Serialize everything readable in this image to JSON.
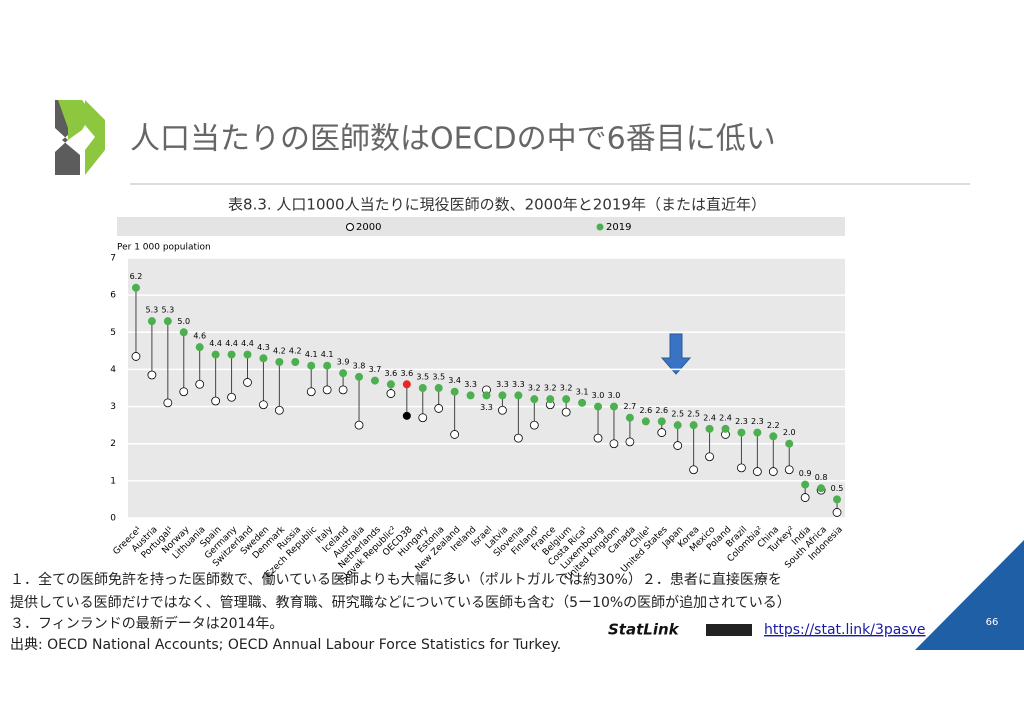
{
  "slide_title": "人口当たりの医師数はOECDの中で6番目に低い",
  "chart_data": {
    "type": "dot",
    "title": "表8.3. 人口1000人当たりに現役医師の数、2000年と2019年（または直近年）",
    "y_label": "Per 1 000 population",
    "categories": [
      "Greece¹",
      "Austria",
      "Portugal¹",
      "Norway",
      "Lithuania",
      "Spain",
      "Germany",
      "Switzerland",
      "Sweden",
      "Denmark",
      "Russia",
      "Czech Republic",
      "Italy",
      "Iceland",
      "Australia",
      "Netherlands",
      "Slovak Republic²",
      "OECD38",
      "Hungary",
      "Estonia",
      "New Zealand",
      "Ireland",
      "Israel",
      "Latvia",
      "Slovenia",
      "Finland³",
      "France",
      "Belgium",
      "Costa Rica¹",
      "Luxembourg",
      "United Kingdom",
      "Canada",
      "Chile¹",
      "United States",
      "Japan",
      "Korea",
      "Mexico",
      "Poland",
      "Brazil",
      "Colombia²",
      "China",
      "Turkey²",
      "India",
      "South Africa",
      "Indonesia"
    ],
    "highlight_index": 17,
    "series": [
      {
        "name": "2000",
        "color": "#ffffff",
        "highlight_color": "#000000",
        "values": [
          4.35,
          3.85,
          3.1,
          3.4,
          3.6,
          3.15,
          3.25,
          3.65,
          3.05,
          2.9,
          null,
          3.4,
          3.45,
          3.45,
          2.5,
          null,
          3.35,
          2.75,
          2.7,
          2.95,
          2.25,
          null,
          3.45,
          2.9,
          2.15,
          2.5,
          3.05,
          2.85,
          null,
          2.15,
          2.0,
          2.05,
          null,
          2.3,
          1.95,
          1.3,
          1.65,
          2.25,
          1.35,
          1.25,
          1.25,
          1.3,
          0.55,
          0.75,
          0.15
        ]
      },
      {
        "name": "2019",
        "color": "#4caf50",
        "highlight_color": "#e8262a",
        "values": [
          6.2,
          5.3,
          5.3,
          5.0,
          4.6,
          4.4,
          4.4,
          4.4,
          4.3,
          4.2,
          4.2,
          4.1,
          4.1,
          3.9,
          3.8,
          3.7,
          3.6,
          3.6,
          3.5,
          3.5,
          3.4,
          3.3,
          3.3,
          3.3,
          3.3,
          3.2,
          3.2,
          3.2,
          3.1,
          3.0,
          3.0,
          2.7,
          2.6,
          2.6,
          2.5,
          2.5,
          2.4,
          2.4,
          2.3,
          2.3,
          2.2,
          2.0,
          0.9,
          0.8,
          0.5
        ],
        "value_labels": [
          "6.2",
          "5.3",
          "5.3",
          "5.0",
          "4.6",
          "4.4",
          "4.4",
          "4.4",
          "4.3",
          "4.2",
          "4.2",
          "4.1",
          "4.1",
          "3.9",
          "3.8",
          "3.7",
          "3.6",
          "3.6",
          "3.5",
          "3.5",
          "3.4",
          "3.3",
          "3.3",
          "3.3",
          "3.3",
          "3.2",
          "3.2",
          "3.2",
          "3.1",
          "3.0",
          "3.0",
          "2.7",
          "2.6",
          "2.6",
          "2.5",
          "2.5",
          "2.4",
          "2.4",
          "2.3",
          "2.3",
          "2.2",
          "2.0",
          "0.9",
          "0.8",
          "0.5"
        ]
      }
    ],
    "ylim": [
      0,
      7
    ],
    "yticks": [
      0,
      1,
      2,
      3,
      4,
      5,
      6,
      7
    ],
    "grid": true
  },
  "notes": [
    "１．全ての医師免許を持った医師数で、働いている医師よりも大幅に多い（ポルトガルでは約30%）２．患者に直接医療を",
    "提供している医師だけではなく、管理職、教育職、研究職などについている医師も含む（5ー10%の医師が追加されている）",
    "３．フィンランドの最新データは2014年。",
    "出典: OECD National Accounts; OECD Annual Labour Force Statistics for Turkey."
  ],
  "statlink": {
    "brand": "StatLink",
    "url": "https://stat.link/3pasve"
  },
  "page_number": "66"
}
